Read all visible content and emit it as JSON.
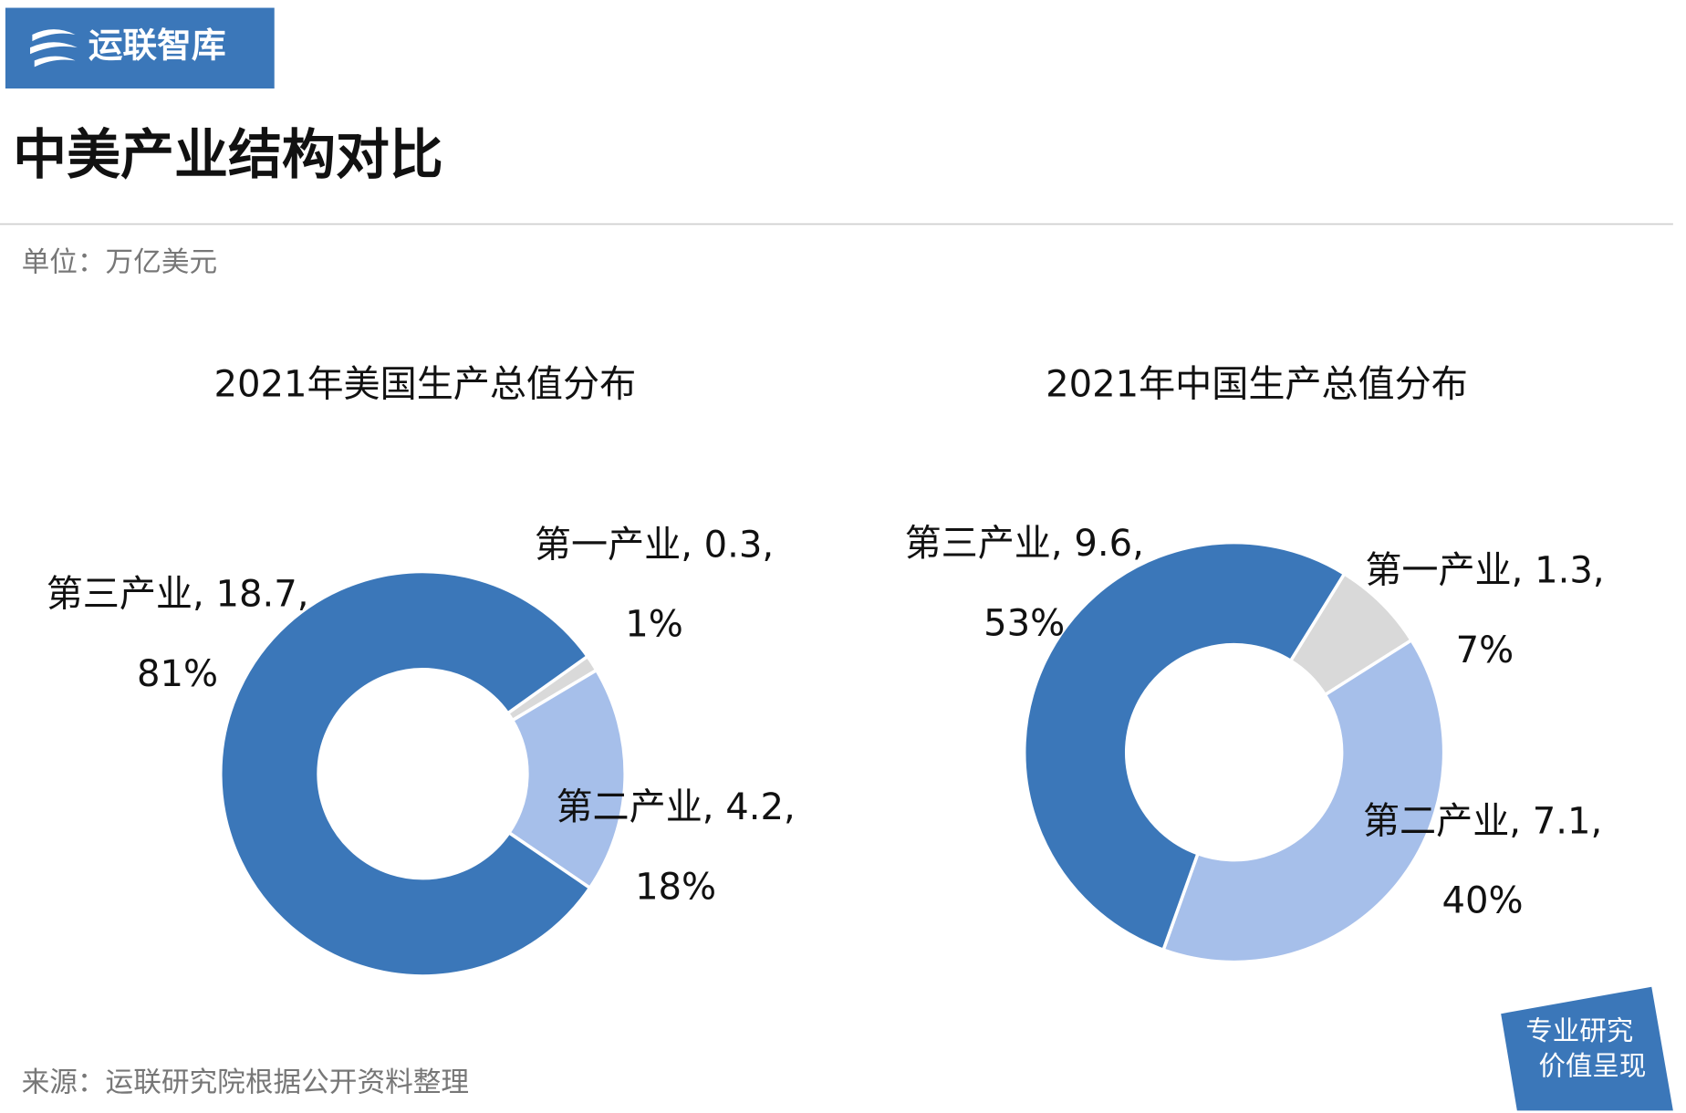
{
  "header": {
    "logo": "运联智库",
    "title": "中美产业结构对比",
    "unit": "单位：万亿美元"
  },
  "chart_data": [
    {
      "type": "donut",
      "title": "2021年美国生产总值分布",
      "categories": [
        "第一产业",
        "第二产业",
        "第三产业"
      ],
      "values": [
        0.3,
        4.2,
        18.7
      ],
      "colors": [
        "#d9d9d9",
        "#a6bfea",
        "#3b77b9"
      ],
      "data_labels": [
        [
          "第一产业, 0.3,",
          "1%"
        ],
        [
          "第二产业, 4.2,",
          "18%"
        ],
        [
          "第三产业, 18.7,",
          "81%"
        ]
      ]
    },
    {
      "type": "donut",
      "title": "2021年中国生产总值分布",
      "categories": [
        "第一产业",
        "第二产业",
        "第三产业"
      ],
      "values": [
        1.3,
        7.1,
        9.6
      ],
      "colors": [
        "#d9d9d9",
        "#a6bfea",
        "#3b77b9"
      ],
      "data_labels": [
        [
          "第一产业, 1.3,",
          "7%"
        ],
        [
          "第二产业, 7.1,",
          "40%"
        ],
        [
          "第三产业, 9.6,",
          "53%"
        ]
      ]
    }
  ],
  "footer": {
    "source": "来源：运联研究院根据公开资料整理",
    "badge": [
      "专业研究",
      "价值呈现"
    ]
  }
}
